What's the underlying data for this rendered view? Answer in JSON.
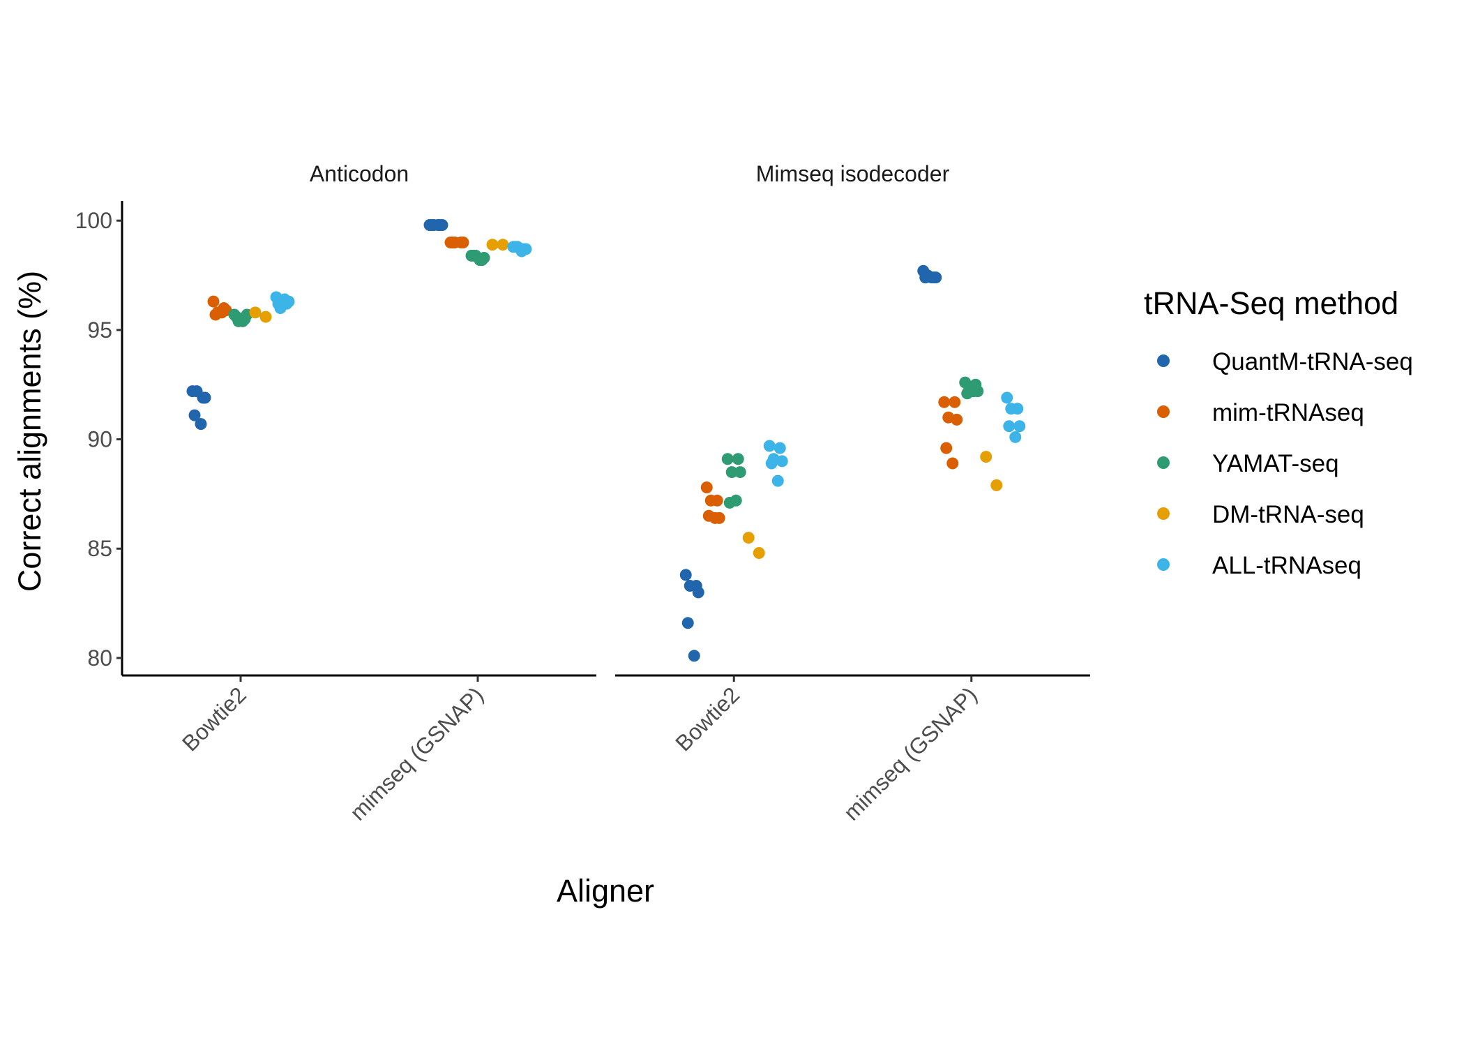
{
  "chart_data": {
    "type": "scatter",
    "xlabel": "Aligner",
    "ylabel": "Correct alignments (%)",
    "categories": [
      "Bowtie2",
      "mimseq (GSNAP)"
    ],
    "ylim": [
      79.2,
      100.9
    ],
    "yticks": [
      80,
      85,
      90,
      95,
      100
    ],
    "grid": false,
    "legend": {
      "title": "tRNA-Seq method",
      "position": "right",
      "items": [
        {
          "name": "QuantM-tRNA-seq",
          "color": "#2166ac"
        },
        {
          "name": "mim-tRNAseq",
          "color": "#d95f02"
        },
        {
          "name": "YAMAT-seq",
          "color": "#2e9b72"
        },
        {
          "name": "DM-tRNA-seq",
          "color": "#e69f00"
        },
        {
          "name": "ALL-tRNAseq",
          "color": "#3cb4e8"
        }
      ]
    },
    "panels": [
      {
        "title": "Anticodon",
        "groups": [
          {
            "aligner": "Bowtie2",
            "series": [
              {
                "name": "QuantM-tRNA-seq",
                "values": [
                  92.2,
                  91.9,
                  92.2,
                  91.9,
                  91.1,
                  90.7
                ]
              },
              {
                "name": "mim-tRNAseq",
                "values": [
                  96.3,
                  96.0,
                  95.8,
                  95.9,
                  95.7,
                  95.8
                ]
              },
              {
                "name": "YAMAT-seq",
                "values": [
                  95.7,
                  95.5,
                  95.4,
                  95.7,
                  95.6,
                  95.4
                ]
              },
              {
                "name": "DM-tRNA-seq",
                "values": [
                  95.8,
                  95.6
                ]
              },
              {
                "name": "ALL-tRNAseq",
                "values": [
                  96.5,
                  96.2,
                  96.0,
                  96.3,
                  96.2,
                  96.4
                ]
              }
            ]
          },
          {
            "aligner": "mimseq (GSNAP)",
            "series": [
              {
                "name": "QuantM-tRNA-seq",
                "values": [
                  99.8,
                  99.8,
                  99.8,
                  99.8,
                  99.8,
                  99.8
                ]
              },
              {
                "name": "mim-tRNAseq",
                "values": [
                  99.0,
                  99.0,
                  99.0,
                  99.0,
                  99.0
                ]
              },
              {
                "name": "YAMAT-seq",
                "values": [
                  98.4,
                  98.2,
                  98.4,
                  98.3,
                  98.4,
                  98.2
                ]
              },
              {
                "name": "DM-tRNA-seq",
                "values": [
                  98.9,
                  98.9
                ]
              },
              {
                "name": "ALL-tRNAseq",
                "values": [
                  98.8,
                  98.7,
                  98.8,
                  98.7,
                  98.8,
                  98.6
                ]
              }
            ]
          }
        ]
      },
      {
        "title": "Mimseq isodecoder",
        "groups": [
          {
            "aligner": "Bowtie2",
            "series": [
              {
                "name": "QuantM-tRNA-seq",
                "values": [
                  83.8,
                  83.3,
                  83.3,
                  83.0,
                  81.6,
                  80.1
                ]
              },
              {
                "name": "mim-tRNAseq",
                "values": [
                  87.8,
                  87.2,
                  87.2,
                  86.4,
                  86.5,
                  86.4
                ]
              },
              {
                "name": "YAMAT-seq",
                "values": [
                  89.1,
                  89.1,
                  88.5,
                  88.5,
                  87.1,
                  87.2
                ]
              },
              {
                "name": "DM-tRNA-seq",
                "values": [
                  85.5,
                  84.8
                ]
              },
              {
                "name": "ALL-tRNAseq",
                "values": [
                  89.7,
                  89.6,
                  89.1,
                  89.0,
                  88.9,
                  88.1
                ]
              }
            ]
          },
          {
            "aligner": "mimseq (GSNAP)",
            "series": [
              {
                "name": "QuantM-tRNA-seq",
                "values": [
                  97.7,
                  97.4,
                  97.5,
                  97.4,
                  97.4,
                  97.4
                ]
              },
              {
                "name": "mim-tRNAseq",
                "values": [
                  91.7,
                  91.7,
                  91.0,
                  90.9,
                  89.6,
                  88.9
                ]
              },
              {
                "name": "YAMAT-seq",
                "values": [
                  92.6,
                  92.5,
                  92.3,
                  92.2,
                  92.1,
                  92.2
                ]
              },
              {
                "name": "DM-tRNA-seq",
                "values": [
                  89.2,
                  87.9
                ]
              },
              {
                "name": "ALL-tRNAseq",
                "values": [
                  91.9,
                  91.4,
                  91.4,
                  90.6,
                  90.6,
                  90.1
                ]
              }
            ]
          }
        ]
      }
    ]
  }
}
